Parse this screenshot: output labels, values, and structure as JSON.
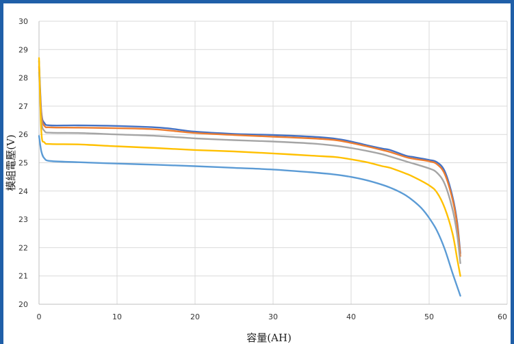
{
  "chart_data": {
    "type": "line",
    "title": "",
    "xlabel": "容量(AH)",
    "ylabel": "模組電壓(V)",
    "xlim": [
      0,
      60
    ],
    "ylim": [
      20,
      30
    ],
    "x_ticks": [
      "0",
      "10",
      "20",
      "30",
      "40",
      "50",
      "60"
    ],
    "y_ticks": [
      "20",
      "21",
      "22",
      "23",
      "24",
      "25",
      "26",
      "27",
      "28",
      "29",
      "30"
    ],
    "grid": true,
    "legend": "none",
    "series": [
      {
        "color": "#4472c4",
        "points": [
          [
            0,
            28.6
          ],
          [
            0.3,
            26.8
          ],
          [
            0.7,
            26.4
          ],
          [
            1.5,
            26.32
          ],
          [
            5,
            26.32
          ],
          [
            10,
            26.3
          ],
          [
            15,
            26.25
          ],
          [
            17,
            26.2
          ],
          [
            20,
            26.1
          ],
          [
            25,
            26.02
          ],
          [
            30,
            25.98
          ],
          [
            35,
            25.92
          ],
          [
            38,
            25.85
          ],
          [
            40,
            25.75
          ],
          [
            42,
            25.62
          ],
          [
            44,
            25.5
          ],
          [
            45,
            25.45
          ],
          [
            47,
            25.25
          ],
          [
            48,
            25.2
          ],
          [
            50,
            25.1
          ],
          [
            51,
            25.02
          ],
          [
            52,
            24.7
          ],
          [
            53,
            23.8
          ],
          [
            53.6,
            22.9
          ],
          [
            54,
            21.8
          ]
        ]
      },
      {
        "color": "#ed7d31",
        "points": [
          [
            0,
            28.4
          ],
          [
            0.3,
            26.7
          ],
          [
            0.7,
            26.3
          ],
          [
            1.5,
            26.25
          ],
          [
            5,
            26.24
          ],
          [
            10,
            26.22
          ],
          [
            15,
            26.18
          ],
          [
            20,
            26.05
          ],
          [
            25,
            25.98
          ],
          [
            30,
            25.92
          ],
          [
            35,
            25.86
          ],
          [
            38,
            25.8
          ],
          [
            40,
            25.7
          ],
          [
            42,
            25.58
          ],
          [
            44,
            25.45
          ],
          [
            45,
            25.38
          ],
          [
            47,
            25.2
          ],
          [
            48,
            25.14
          ],
          [
            50,
            25.05
          ],
          [
            51,
            24.95
          ],
          [
            52,
            24.6
          ],
          [
            53,
            23.7
          ],
          [
            53.6,
            22.8
          ],
          [
            54,
            21.7
          ]
        ]
      },
      {
        "color": "#a5a5a5",
        "points": [
          [
            0,
            28.2
          ],
          [
            0.3,
            26.5
          ],
          [
            0.7,
            26.12
          ],
          [
            1.5,
            26.06
          ],
          [
            5,
            26.05
          ],
          [
            10,
            26.0
          ],
          [
            15,
            25.95
          ],
          [
            20,
            25.86
          ],
          [
            25,
            25.8
          ],
          [
            30,
            25.75
          ],
          [
            35,
            25.68
          ],
          [
            38,
            25.6
          ],
          [
            40,
            25.52
          ],
          [
            42,
            25.42
          ],
          [
            44,
            25.3
          ],
          [
            45,
            25.22
          ],
          [
            47,
            25.05
          ],
          [
            48,
            24.97
          ],
          [
            50,
            24.8
          ],
          [
            51,
            24.65
          ],
          [
            52,
            24.25
          ],
          [
            53,
            23.35
          ],
          [
            53.6,
            22.45
          ],
          [
            54,
            21.45
          ]
        ]
      },
      {
        "color": "#ffc000",
        "points": [
          [
            0,
            28.7
          ],
          [
            0.3,
            26.1
          ],
          [
            0.7,
            25.72
          ],
          [
            1.5,
            25.66
          ],
          [
            5,
            25.65
          ],
          [
            10,
            25.58
          ],
          [
            15,
            25.52
          ],
          [
            20,
            25.45
          ],
          [
            25,
            25.4
          ],
          [
            30,
            25.33
          ],
          [
            35,
            25.25
          ],
          [
            38,
            25.2
          ],
          [
            40,
            25.12
          ],
          [
            42,
            25.02
          ],
          [
            44,
            24.88
          ],
          [
            45,
            24.82
          ],
          [
            47,
            24.62
          ],
          [
            48,
            24.5
          ],
          [
            50,
            24.2
          ],
          [
            51,
            23.95
          ],
          [
            52,
            23.4
          ],
          [
            53,
            22.5
          ],
          [
            53.6,
            21.6
          ],
          [
            54,
            21.0
          ]
        ]
      },
      {
        "color": "#5b9bd5",
        "points": [
          [
            0,
            25.95
          ],
          [
            0.3,
            25.4
          ],
          [
            0.7,
            25.15
          ],
          [
            1.5,
            25.06
          ],
          [
            5,
            25.02
          ],
          [
            10,
            24.97
          ],
          [
            15,
            24.93
          ],
          [
            20,
            24.88
          ],
          [
            25,
            24.82
          ],
          [
            30,
            24.76
          ],
          [
            35,
            24.66
          ],
          [
            38,
            24.58
          ],
          [
            40,
            24.5
          ],
          [
            42,
            24.38
          ],
          [
            44,
            24.22
          ],
          [
            45,
            24.12
          ],
          [
            46,
            24.0
          ],
          [
            47,
            23.85
          ],
          [
            48,
            23.65
          ],
          [
            49,
            23.4
          ],
          [
            50,
            23.05
          ],
          [
            51,
            22.6
          ],
          [
            52,
            21.95
          ],
          [
            53,
            21.1
          ],
          [
            54,
            20.3
          ]
        ]
      }
    ]
  }
}
